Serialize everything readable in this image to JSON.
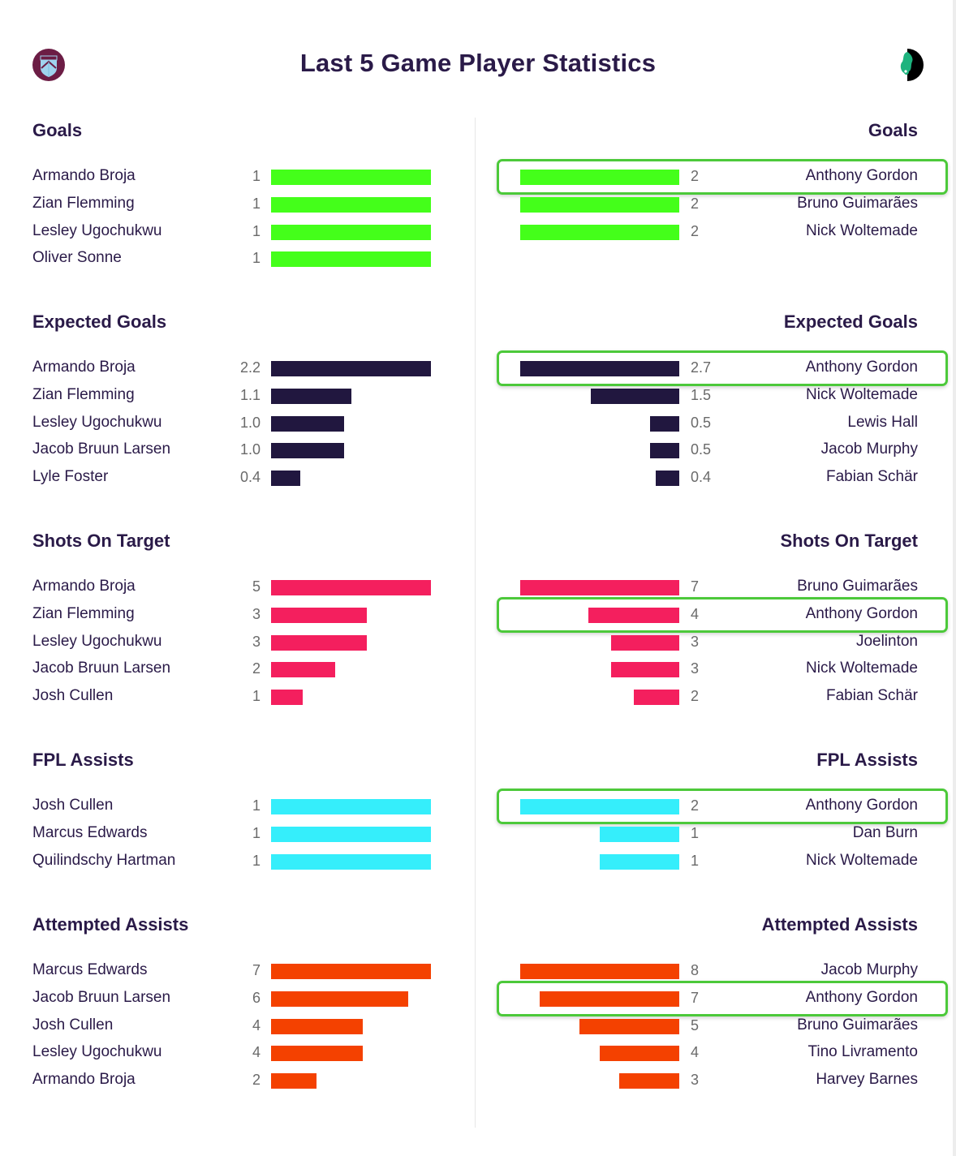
{
  "page": {
    "title": "Last 5 Game Player Statistics",
    "left_team_crest": "burnley-crest-icon",
    "right_team_crest": "newcastle-crest-icon"
  },
  "colors": {
    "goals": "#44ff1a",
    "expected_goals": "#21173f",
    "shots_on_target": "#f41f5e",
    "fpl_assists": "#35eefb",
    "attempted_assists": "#f44100",
    "highlight": "#4cc93a",
    "text": "#2a1a48",
    "value_text": "#6a6a6a"
  },
  "sections": [
    {
      "title": "Goals",
      "color_key": "goals",
      "max": 2,
      "left": [
        {
          "name": "Armando Broja",
          "value": "1"
        },
        {
          "name": "Zian Flemming",
          "value": "1"
        },
        {
          "name": "Lesley Ugochukwu",
          "value": "1"
        },
        {
          "name": "Oliver Sonne",
          "value": "1"
        }
      ],
      "right": [
        {
          "name": "Anthony Gordon",
          "value": "2",
          "highlighted": true
        },
        {
          "name": "Bruno Guimarães",
          "value": "2"
        },
        {
          "name": "Nick Woltemade",
          "value": "2"
        }
      ]
    },
    {
      "title": "Expected Goals",
      "color_key": "expected_goals",
      "left": [
        {
          "name": "Armando Broja",
          "value": "2.2"
        },
        {
          "name": "Zian Flemming",
          "value": "1.1"
        },
        {
          "name": "Lesley Ugochukwu",
          "value": "1.0"
        },
        {
          "name": "Jacob Bruun Larsen",
          "value": "1.0"
        },
        {
          "name": "Lyle Foster",
          "value": "0.4"
        }
      ],
      "right": [
        {
          "name": "Anthony Gordon",
          "value": "2.7",
          "highlighted": true
        },
        {
          "name": "Nick Woltemade",
          "value": "1.5"
        },
        {
          "name": "Lewis Hall",
          "value": "0.5"
        },
        {
          "name": "Jacob Murphy",
          "value": "0.5"
        },
        {
          "name": "Fabian Schär",
          "value": "0.4"
        }
      ]
    },
    {
      "title": "Shots On Target",
      "color_key": "shots_on_target",
      "left": [
        {
          "name": "Armando Broja",
          "value": "5"
        },
        {
          "name": "Zian Flemming",
          "value": "3"
        },
        {
          "name": "Lesley Ugochukwu",
          "value": "3"
        },
        {
          "name": "Jacob Bruun Larsen",
          "value": "2"
        },
        {
          "name": "Josh Cullen",
          "value": "1"
        }
      ],
      "right": [
        {
          "name": "Bruno Guimarães",
          "value": "7"
        },
        {
          "name": "Anthony Gordon",
          "value": "4",
          "highlighted": true
        },
        {
          "name": "Joelinton",
          "value": "3"
        },
        {
          "name": "Nick Woltemade",
          "value": "3"
        },
        {
          "name": "Fabian Schär",
          "value": "2"
        }
      ]
    },
    {
      "title": "FPL Assists",
      "color_key": "fpl_assists",
      "left": [
        {
          "name": "Josh Cullen",
          "value": "1"
        },
        {
          "name": "Marcus Edwards",
          "value": "1"
        },
        {
          "name": "Quilindschy Hartman",
          "value": "1"
        }
      ],
      "right": [
        {
          "name": "Anthony Gordon",
          "value": "2",
          "highlighted": true
        },
        {
          "name": "Dan Burn",
          "value": "1"
        },
        {
          "name": "Nick Woltemade",
          "value": "1"
        }
      ]
    },
    {
      "title": "Attempted Assists",
      "color_key": "attempted_assists",
      "left": [
        {
          "name": "Marcus Edwards",
          "value": "7"
        },
        {
          "name": "Jacob Bruun Larsen",
          "value": "6"
        },
        {
          "name": "Josh Cullen",
          "value": "4"
        },
        {
          "name": "Lesley Ugochukwu",
          "value": "4"
        },
        {
          "name": "Armando Broja",
          "value": "2"
        }
      ],
      "right": [
        {
          "name": "Jacob Murphy",
          "value": "8"
        },
        {
          "name": "Anthony Gordon",
          "value": "7",
          "highlighted": true
        },
        {
          "name": "Bruno Guimarães",
          "value": "5"
        },
        {
          "name": "Tino Livramento",
          "value": "4"
        },
        {
          "name": "Harvey Barnes",
          "value": "3"
        }
      ]
    }
  ],
  "chart_data": [
    {
      "type": "bar",
      "title": "Goals",
      "series": [
        {
          "name": "Left team",
          "categories": [
            "Armando Broja",
            "Zian Flemming",
            "Lesley Ugochukwu",
            "Oliver Sonne"
          ],
          "values": [
            1,
            1,
            1,
            1
          ]
        },
        {
          "name": "Right team",
          "categories": [
            "Anthony Gordon",
            "Bruno Guimarães",
            "Nick Woltemade"
          ],
          "values": [
            2,
            2,
            2
          ]
        }
      ]
    },
    {
      "type": "bar",
      "title": "Expected Goals",
      "series": [
        {
          "name": "Left team",
          "categories": [
            "Armando Broja",
            "Zian Flemming",
            "Lesley Ugochukwu",
            "Jacob Bruun Larsen",
            "Lyle Foster"
          ],
          "values": [
            2.2,
            1.1,
            1.0,
            1.0,
            0.4
          ]
        },
        {
          "name": "Right team",
          "categories": [
            "Anthony Gordon",
            "Nick Woltemade",
            "Lewis Hall",
            "Jacob Murphy",
            "Fabian Schär"
          ],
          "values": [
            2.7,
            1.5,
            0.5,
            0.5,
            0.4
          ]
        }
      ]
    },
    {
      "type": "bar",
      "title": "Shots On Target",
      "series": [
        {
          "name": "Left team",
          "categories": [
            "Armando Broja",
            "Zian Flemming",
            "Lesley Ugochukwu",
            "Jacob Bruun Larsen",
            "Josh Cullen"
          ],
          "values": [
            5,
            3,
            3,
            2,
            1
          ]
        },
        {
          "name": "Right team",
          "categories": [
            "Bruno Guimarães",
            "Anthony Gordon",
            "Joelinton",
            "Nick Woltemade",
            "Fabian Schär"
          ],
          "values": [
            7,
            4,
            3,
            3,
            2
          ]
        }
      ]
    },
    {
      "type": "bar",
      "title": "FPL Assists",
      "series": [
        {
          "name": "Left team",
          "categories": [
            "Josh Cullen",
            "Marcus Edwards",
            "Quilindschy Hartman"
          ],
          "values": [
            1,
            1,
            1
          ]
        },
        {
          "name": "Right team",
          "categories": [
            "Anthony Gordon",
            "Dan Burn",
            "Nick Woltemade"
          ],
          "values": [
            2,
            1,
            1
          ]
        }
      ]
    },
    {
      "type": "bar",
      "title": "Attempted Assists",
      "series": [
        {
          "name": "Left team",
          "categories": [
            "Marcus Edwards",
            "Jacob Bruun Larsen",
            "Josh Cullen",
            "Lesley Ugochukwu",
            "Armando Broja"
          ],
          "values": [
            7,
            6,
            4,
            4,
            2
          ]
        },
        {
          "name": "Right team",
          "categories": [
            "Jacob Murphy",
            "Anthony Gordon",
            "Bruno Guimarães",
            "Tino Livramento",
            "Harvey Barnes"
          ],
          "values": [
            8,
            7,
            5,
            4,
            3
          ]
        }
      ]
    }
  ]
}
